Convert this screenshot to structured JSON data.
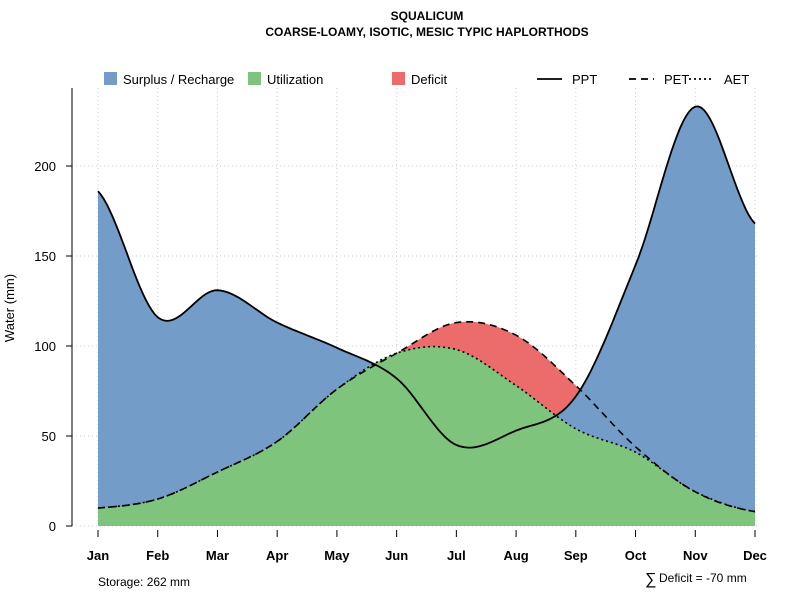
{
  "chart_data": {
    "type": "area",
    "title": "SQUALICUM",
    "subtitle": "COARSE-LOAMY, ISOTIC, MESIC TYPIC HAPLORTHODS",
    "xlabel": "",
    "ylabel": "Water (mm)",
    "ylim": [
      0,
      235
    ],
    "yticks": [
      0,
      50,
      100,
      150,
      200
    ],
    "grid": true,
    "categories": [
      "Jan",
      "Feb",
      "Mar",
      "Apr",
      "May",
      "Jun",
      "Jul",
      "Aug",
      "Sep",
      "Oct",
      "Nov",
      "Dec"
    ],
    "series": [
      {
        "name": "PPT",
        "style": "solid",
        "values": [
          186,
          116,
          131,
          113,
          99,
          82,
          45,
          53,
          72,
          145,
          233,
          168
        ]
      },
      {
        "name": "PET",
        "style": "dashed",
        "values": [
          10,
          15,
          30,
          47,
          76,
          96,
          113,
          106,
          78,
          44,
          19,
          8
        ]
      },
      {
        "name": "AET",
        "style": "dotted",
        "values": [
          10,
          15,
          30,
          47,
          76,
          96,
          98,
          78,
          54,
          41,
          19,
          8
        ]
      }
    ],
    "legend": {
      "placement": "top",
      "fills": [
        {
          "label": "Surplus / Recharge",
          "color": "#739cc8"
        },
        {
          "label": "Utilization",
          "color": "#7fc47c"
        },
        {
          "label": "Deficit",
          "color": "#ec6b6b"
        }
      ],
      "lines": [
        {
          "label": "PPT",
          "style": "solid"
        },
        {
          "label": "PET",
          "style": "dashed"
        },
        {
          "label": "AET",
          "style": "dotted"
        }
      ]
    },
    "annotations": {
      "storage": "Storage: 262 mm",
      "deficit_symbol": "∑",
      "deficit": "Deficit = -70 mm"
    }
  }
}
